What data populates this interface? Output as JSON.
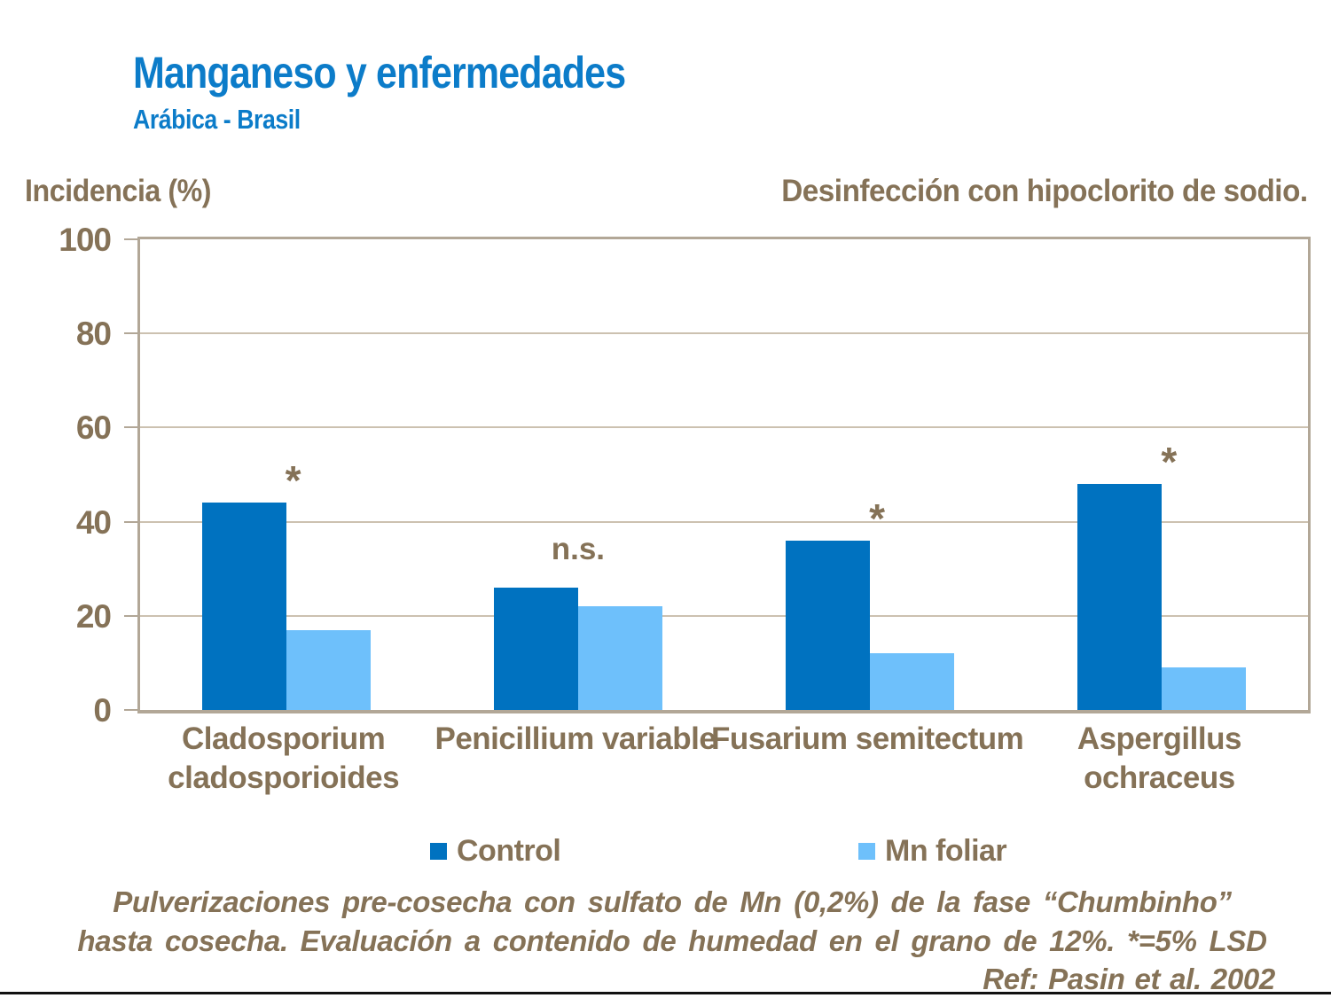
{
  "title": "Manganeso y enfermedades",
  "subtitle": "Arábica - Brasil",
  "ylabel_note": "Incidencia (%)",
  "right_note": "Desinfección con hipoclorito de sodio.",
  "chart_data": {
    "type": "bar",
    "categories": [
      "Cladosporium cladosporioides",
      "Penicillium variable",
      "Fusarium semitectum",
      "Aspergillus ochraceus"
    ],
    "series": [
      {
        "name": "Control",
        "color": "#0072C0",
        "values": [
          44,
          26,
          36,
          48
        ]
      },
      {
        "name": "Mn foliar",
        "color": "#6EC0FB",
        "values": [
          17,
          22,
          12,
          9
        ]
      }
    ],
    "annotations": [
      "*",
      "n.s.",
      "*",
      "*"
    ],
    "ylabel": "Incidencia (%)",
    "ylim": [
      0,
      100
    ],
    "yticks": [
      0,
      20,
      40,
      60,
      80,
      100
    ],
    "grid": true,
    "legend_position": "bottom"
  },
  "legend": {
    "items": [
      {
        "label": "Control",
        "color": "#0072C0"
      },
      {
        "label": "Mn foliar",
        "color": "#6EC0FB"
      }
    ]
  },
  "footnote_line1": "Pulverizaciones pre-cosecha con sulfato de Mn (0,2%) de la fase “Chumbinho”",
  "footnote_line2": "hasta cosecha. Evaluación a contenido de humedad en el grano de 12%. *=5% LSD",
  "reference": "Ref: Pasin et al. 2002",
  "colors": {
    "title_blue": "#0C7CC9",
    "text_brown": "#857257",
    "frame": "#B2A797",
    "gridline": "#CCC1B0",
    "control_bar": "#0072C0",
    "mn_bar": "#6EC0FB",
    "bottom_rule": "#111111"
  }
}
